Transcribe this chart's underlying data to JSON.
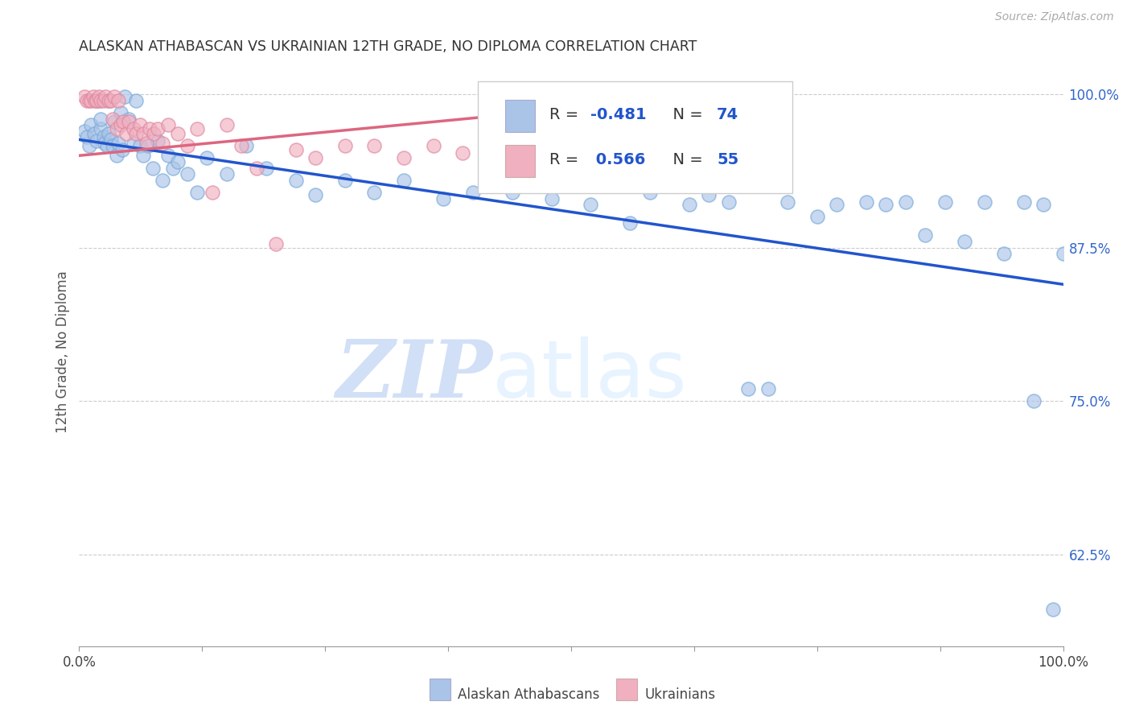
{
  "title": "ALASKAN ATHABASCAN VS UKRAINIAN 12TH GRADE, NO DIPLOMA CORRELATION CHART",
  "source": "Source: ZipAtlas.com",
  "ylabel": "12th Grade, No Diploma",
  "legend_label1": "Alaskan Athabascans",
  "legend_label2": "Ukrainians",
  "R1": -0.481,
  "N1": 74,
  "R2": 0.566,
  "N2": 55,
  "blue_color": "#aac4e8",
  "blue_edge": "#7aaad8",
  "pink_color": "#f0b0c0",
  "pink_edge": "#e088a0",
  "blue_line_color": "#2255cc",
  "pink_line_color": "#dd6680",
  "R_color": "#2255cc",
  "N_color": "#2255cc",
  "ytick_color": "#3366cc",
  "xlim": [
    0.0,
    1.0
  ],
  "ylim": [
    0.55,
    1.03
  ],
  "ytick_values": [
    1.0,
    0.875,
    0.75,
    0.625
  ],
  "ytick_labels": [
    "100.0%",
    "87.5%",
    "75.0%",
    "62.5%"
  ],
  "blue_x": [
    0.005,
    0.008,
    0.01,
    0.012,
    0.015,
    0.018,
    0.018,
    0.02,
    0.022,
    0.022,
    0.025,
    0.026,
    0.028,
    0.03,
    0.03,
    0.032,
    0.034,
    0.036,
    0.038,
    0.04,
    0.042,
    0.044,
    0.046,
    0.05,
    0.055,
    0.058,
    0.062,
    0.065,
    0.07,
    0.075,
    0.08,
    0.085,
    0.09,
    0.095,
    0.1,
    0.11,
    0.12,
    0.13,
    0.15,
    0.17,
    0.19,
    0.22,
    0.24,
    0.27,
    0.3,
    0.33,
    0.37,
    0.4,
    0.44,
    0.48,
    0.52,
    0.56,
    0.58,
    0.62,
    0.64,
    0.66,
    0.68,
    0.7,
    0.72,
    0.75,
    0.77,
    0.8,
    0.82,
    0.84,
    0.86,
    0.88,
    0.9,
    0.92,
    0.94,
    0.96,
    0.97,
    0.98,
    0.99,
    1.0
  ],
  "blue_y": [
    0.97,
    0.965,
    0.958,
    0.975,
    0.968,
    0.962,
    0.995,
    0.995,
    0.972,
    0.98,
    0.965,
    0.96,
    0.958,
    0.968,
    0.995,
    0.963,
    0.958,
    0.978,
    0.95,
    0.96,
    0.985,
    0.955,
    0.998,
    0.98,
    0.96,
    0.995,
    0.958,
    0.95,
    0.958,
    0.94,
    0.962,
    0.93,
    0.95,
    0.94,
    0.945,
    0.935,
    0.92,
    0.948,
    0.935,
    0.958,
    0.94,
    0.93,
    0.918,
    0.93,
    0.92,
    0.93,
    0.915,
    0.92,
    0.92,
    0.915,
    0.91,
    0.895,
    0.92,
    0.91,
    0.918,
    0.912,
    0.76,
    0.76,
    0.912,
    0.9,
    0.91,
    0.912,
    0.91,
    0.912,
    0.885,
    0.912,
    0.88,
    0.912,
    0.87,
    0.912,
    0.75,
    0.91,
    0.58,
    0.87
  ],
  "pink_x": [
    0.005,
    0.008,
    0.01,
    0.012,
    0.014,
    0.016,
    0.018,
    0.02,
    0.022,
    0.025,
    0.027,
    0.03,
    0.032,
    0.034,
    0.036,
    0.038,
    0.04,
    0.042,
    0.045,
    0.048,
    0.05,
    0.055,
    0.058,
    0.062,
    0.065,
    0.068,
    0.072,
    0.076,
    0.08,
    0.085,
    0.09,
    0.1,
    0.11,
    0.12,
    0.135,
    0.15,
    0.165,
    0.18,
    0.2,
    0.22,
    0.24,
    0.27,
    0.3,
    0.33,
    0.36,
    0.39,
    0.42,
    0.45,
    0.48,
    0.51,
    0.54,
    0.57,
    0.6,
    0.65,
    0.7
  ],
  "pink_y": [
    0.998,
    0.995,
    0.995,
    0.995,
    0.998,
    0.995,
    0.995,
    0.998,
    0.995,
    0.995,
    0.998,
    0.995,
    0.995,
    0.98,
    0.998,
    0.972,
    0.995,
    0.975,
    0.978,
    0.968,
    0.978,
    0.972,
    0.968,
    0.975,
    0.968,
    0.96,
    0.972,
    0.968,
    0.972,
    0.96,
    0.975,
    0.968,
    0.958,
    0.972,
    0.92,
    0.975,
    0.958,
    0.94,
    0.878,
    0.955,
    0.948,
    0.958,
    0.958,
    0.948,
    0.958,
    0.952,
    0.958,
    0.952,
    0.958,
    0.965,
    0.955,
    0.972,
    0.955,
    0.972,
    0.968
  ],
  "blue_trend_x0": 0.0,
  "blue_trend_x1": 1.0,
  "blue_trend_y0": 0.963,
  "blue_trend_y1": 0.845,
  "pink_trend_x0": 0.0,
  "pink_trend_x1": 0.72,
  "pink_trend_y0": 0.95,
  "pink_trend_y1": 1.005
}
